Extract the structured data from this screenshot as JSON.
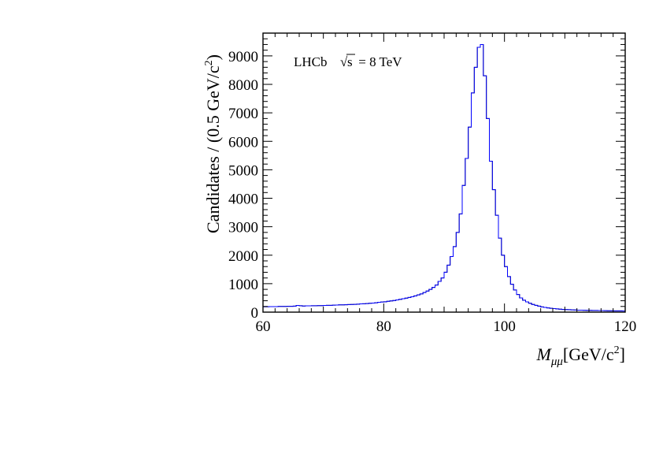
{
  "chart_data": {
    "type": "histogram",
    "x_edges_start": 60,
    "bin_width": 0.5,
    "xlim": [
      60,
      120
    ],
    "ylim": [
      0,
      9800
    ],
    "xticks": [
      60,
      80,
      100,
      120
    ],
    "yticks": [
      0,
      1000,
      2000,
      3000,
      4000,
      5000,
      6000,
      7000,
      8000,
      9000
    ],
    "xlabel": {
      "main": "M",
      "sub": "μμ",
      "unit": "[GeV/c",
      "sup": "2",
      "close": "]"
    },
    "ylabel": {
      "main": "Candidates / (0.5 GeV/c",
      "sup": "2",
      "close": ")"
    },
    "annotation": {
      "experiment": "LHCb",
      "sqrt_symbol": "√",
      "s": "s",
      "energy": " = 8 TeV"
    },
    "grid": false,
    "line_color_overlay": "#0000ff",
    "line_color_data": "#000000",
    "values": [
      190,
      190,
      195,
      195,
      195,
      200,
      200,
      200,
      205,
      205,
      210,
      235,
      225,
      215,
      220,
      220,
      225,
      225,
      230,
      230,
      235,
      240,
      240,
      245,
      250,
      255,
      255,
      260,
      265,
      270,
      275,
      280,
      290,
      295,
      300,
      310,
      320,
      330,
      345,
      355,
      365,
      380,
      395,
      410,
      430,
      450,
      470,
      490,
      515,
      540,
      570,
      605,
      640,
      690,
      740,
      800,
      870,
      950,
      1080,
      1200,
      1400,
      1650,
      1950,
      2300,
      2800,
      3450,
      4450,
      5400,
      6500,
      7700,
      8600,
      9300,
      9400,
      8300,
      6800,
      5300,
      4300,
      3400,
      2600,
      2000,
      1600,
      1250,
      980,
      780,
      620,
      500,
      420,
      360,
      310,
      270,
      240,
      210,
      185,
      165,
      150,
      135,
      125,
      115,
      105,
      95,
      90,
      85,
      80,
      75,
      70,
      68,
      66,
      64,
      62,
      60,
      58,
      56,
      54,
      52,
      50,
      48,
      46,
      45,
      44,
      43
    ]
  }
}
